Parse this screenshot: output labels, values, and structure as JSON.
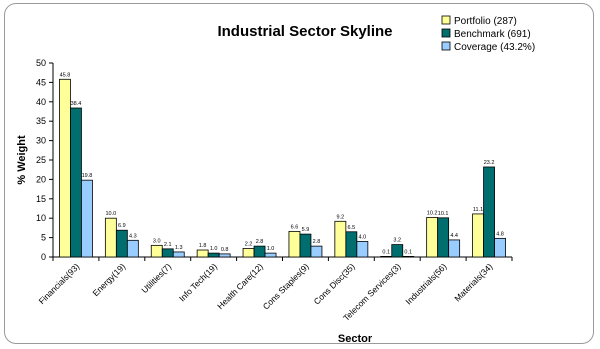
{
  "chart_data": {
    "type": "bar",
    "title": "Industrial Sector Skyline",
    "xlabel": "Sector",
    "ylabel": "% Weight",
    "ylim": [
      0,
      50
    ],
    "yticks": [
      0,
      5,
      10,
      15,
      20,
      25,
      30,
      35,
      40,
      45,
      50
    ],
    "grid": false,
    "legend_position": "top-right",
    "categories": [
      "Financials(93)",
      "Energy(19)",
      "Utilities(7)",
      "Info Tech(19)",
      "Health Care(12)",
      "Cons Staples(9)",
      "Cons Disc(35)",
      "Telecom Services(3)",
      "Industrials(56)",
      "Materials(34)"
    ],
    "series": [
      {
        "name": "Portfolio (287)",
        "color": "#ffff99",
        "values": [
          45.8,
          10.0,
          3.0,
          1.8,
          2.2,
          6.6,
          9.2,
          0.1,
          10.2,
          11.1
        ],
        "labels": [
          "45.8",
          "10.0",
          "3.0",
          "1.8",
          "2.2",
          "6.6",
          "9.2",
          "0.1",
          "10.2",
          "11.1"
        ]
      },
      {
        "name": "Benchmark (691)",
        "color": "#006e6e",
        "values": [
          38.4,
          6.9,
          2.1,
          1.0,
          2.8,
          5.9,
          6.5,
          3.2,
          10.1,
          23.2
        ],
        "labels": [
          "38.4",
          "6.9",
          "2.1",
          "1.0",
          "2.8",
          "5.9",
          "6.5",
          "3.2",
          "10.1",
          "23.2"
        ]
      },
      {
        "name": "Coverage (43.2%)",
        "color": "#99ccff",
        "values": [
          19.8,
          4.3,
          1.3,
          0.8,
          1.0,
          2.8,
          4.0,
          0.1,
          4.4,
          4.8
        ],
        "labels": [
          "19.8",
          "4.3",
          "1.3",
          "0.8",
          "1.0",
          "2.8",
          "4.0",
          "0.1",
          "4.4",
          "4.8"
        ]
      }
    ]
  }
}
